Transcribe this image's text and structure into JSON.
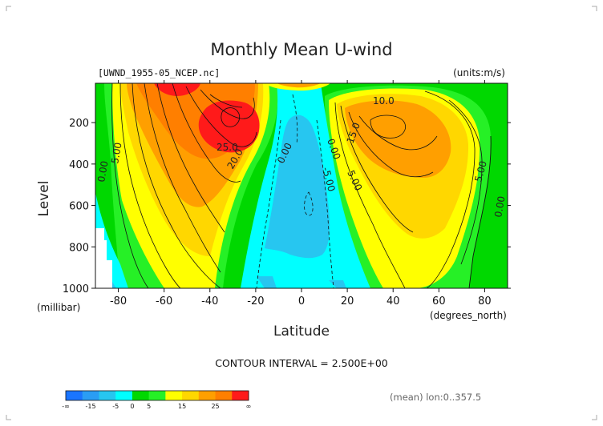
{
  "chart_data": {
    "type": "contour",
    "title": "Monthly Mean U-wind",
    "source": "[UWND_1955-05_NCEP.nc]",
    "units": "(units:m/s)",
    "xlabel": "Latitude",
    "xunit": "(degrees_north)",
    "ylabel": "Level",
    "yunit": "(millibar)",
    "xlim": [
      -90,
      90
    ],
    "ylim": [
      1000,
      10
    ],
    "xticks": [
      "-80",
      "-60",
      "-40",
      "-20",
      "0",
      "20",
      "40",
      "60",
      "80"
    ],
    "yticks": [
      "200",
      "400",
      "600",
      "800",
      "1000"
    ],
    "contour_interval_text": "CONTOUR INTERVAL = 2.500E+00",
    "mean_note": "(mean) lon:0..357.5",
    "contour_labels": [
      "10.0",
      "15.0",
      "20.0",
      "25.0",
      "0.00",
      "5.00",
      "-5.00"
    ],
    "colorbar": {
      "tick_labels": [
        "-∞",
        "-15",
        "-5",
        "0",
        "5",
        "15",
        "25",
        "∞"
      ],
      "colors": [
        "#1a75ff",
        "#2a9df4",
        "#27c6f0",
        "#00ffff",
        "#00d800",
        "#26f026",
        "#ffff00",
        "#ffd700",
        "#ff9f00",
        "#ff7f00",
        "#ff1a1a"
      ]
    },
    "features": [
      {
        "name": "southern jet",
        "lat": -28,
        "level": 200,
        "max": 27.5
      },
      {
        "name": "southern upper jet",
        "lat": -62,
        "level": 30,
        "max": 22.5
      },
      {
        "name": "northern jet",
        "lat": 35,
        "level": 200,
        "max": 20
      },
      {
        "name": "equatorial easterlies",
        "lat": 5,
        "level": 400,
        "min": -7.5
      }
    ]
  }
}
